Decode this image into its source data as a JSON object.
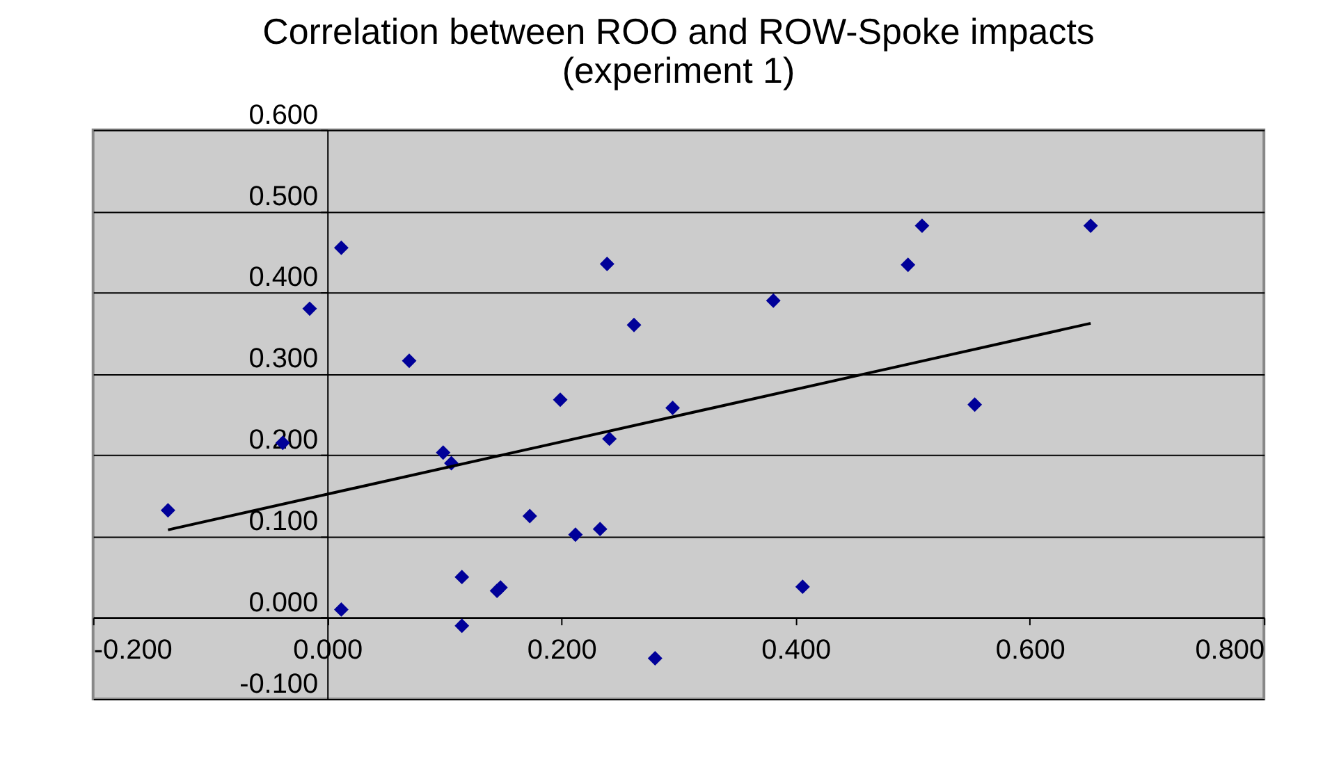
{
  "chart_data": {
    "type": "scatter",
    "title": "Correlation between ROO and ROW-Spoke impacts\n(experiment 1)",
    "xlim": [
      -0.2,
      0.8
    ],
    "xticks": [
      {
        "value": -0.2,
        "label": "-0.200"
      },
      {
        "value": 0,
        "label": "0.000"
      },
      {
        "value": 0.2,
        "label": "0.200"
      },
      {
        "value": 0.4,
        "label": "0.400"
      },
      {
        "value": 0.6,
        "label": "0.600"
      },
      {
        "value": 0.8,
        "label": "0.800"
      }
    ],
    "ylim": [
      -0.1,
      0.6
    ],
    "yticks": [
      {
        "value": -0.1,
        "label": "-0.100"
      },
      {
        "value": 0,
        "label": "0.000"
      },
      {
        "value": 0.1,
        "label": "0.100"
      },
      {
        "value": 0.2,
        "label": "0.200"
      },
      {
        "value": 0.3,
        "label": "0.300"
      },
      {
        "value": 0.4,
        "label": "0.400"
      },
      {
        "value": 0.5,
        "label": "0.500"
      },
      {
        "value": 0.6,
        "label": "0.600"
      }
    ],
    "grid": "y",
    "series": [
      {
        "color": "#000099",
        "marker": "diamond",
        "x": [
          -0.136,
          -0.038,
          -0.015,
          0.012,
          0.012,
          0.07,
          0.099,
          0.106,
          0.115,
          0.115,
          0.145,
          0.148,
          0.173,
          0.199,
          0.212,
          0.233,
          0.239,
          0.241,
          0.262,
          0.28,
          0.295,
          0.381,
          0.406,
          0.496,
          0.508,
          0.553,
          0.652
        ],
        "values": [
          0.132,
          0.215,
          0.38,
          0.455,
          0.01,
          0.316,
          0.203,
          0.19,
          0.05,
          -0.01,
          0.033,
          0.037,
          0.125,
          0.268,
          0.102,
          0.109,
          0.435,
          0.22,
          0.36,
          -0.05,
          0.258,
          0.39,
          0.038,
          0.434,
          0.482,
          0.262,
          0.482
        ]
      },
      {
        "type": "line",
        "color": "#000000",
        "x": [
          -0.136,
          0.652
        ],
        "values": [
          0.108,
          0.362
        ]
      }
    ]
  }
}
